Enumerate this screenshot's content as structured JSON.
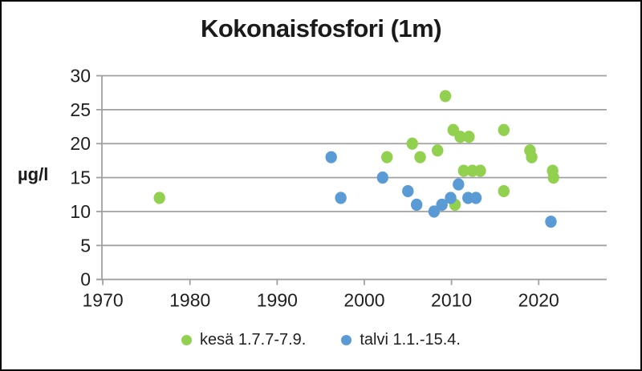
{
  "chart_data": {
    "type": "scatter",
    "title": "Kokonaisfosfori (1m)",
    "ylabel": "µg/l",
    "xlabel": "",
    "xlim": [
      1969.9,
      2027.8
    ],
    "ylim": [
      0,
      30
    ],
    "x_ticks": [
      1970,
      1980,
      1990,
      2000,
      2010,
      2020
    ],
    "y_ticks": [
      0,
      5,
      10,
      15,
      20,
      25,
      30
    ],
    "grid": "horizontal",
    "legend_position": "bottom",
    "axis_color": "#a0a0a0",
    "tick_label_color": "#1f1f1f",
    "series": [
      {
        "name": "kesä 1.7.7-7.9.",
        "color": "#92d050",
        "points": [
          [
            1976.5,
            12
          ],
          [
            2002.6,
            18
          ],
          [
            2005.5,
            20
          ],
          [
            2006.4,
            18
          ],
          [
            2008.4,
            19
          ],
          [
            2009.3,
            27
          ],
          [
            2010.2,
            22
          ],
          [
            2010.4,
            11
          ],
          [
            2011.0,
            21
          ],
          [
            2011.4,
            16
          ],
          [
            2012.0,
            21
          ],
          [
            2012.4,
            16
          ],
          [
            2013.3,
            16
          ],
          [
            2016.0,
            22
          ],
          [
            2016.0,
            13
          ],
          [
            2019.0,
            19
          ],
          [
            2019.2,
            18
          ],
          [
            2021.6,
            16
          ],
          [
            2021.7,
            15
          ]
        ]
      },
      {
        "name": "talvi 1.1.-15.4.",
        "color": "#5b9bd5",
        "points": [
          [
            1996.2,
            18
          ],
          [
            1997.3,
            12
          ],
          [
            2002.1,
            15
          ],
          [
            2005.0,
            13
          ],
          [
            2006.0,
            11
          ],
          [
            2008.0,
            10
          ],
          [
            2008.9,
            11
          ],
          [
            2009.9,
            12
          ],
          [
            2010.8,
            14
          ],
          [
            2011.9,
            12
          ],
          [
            2012.8,
            12
          ],
          [
            2021.4,
            8.5
          ]
        ]
      }
    ]
  }
}
